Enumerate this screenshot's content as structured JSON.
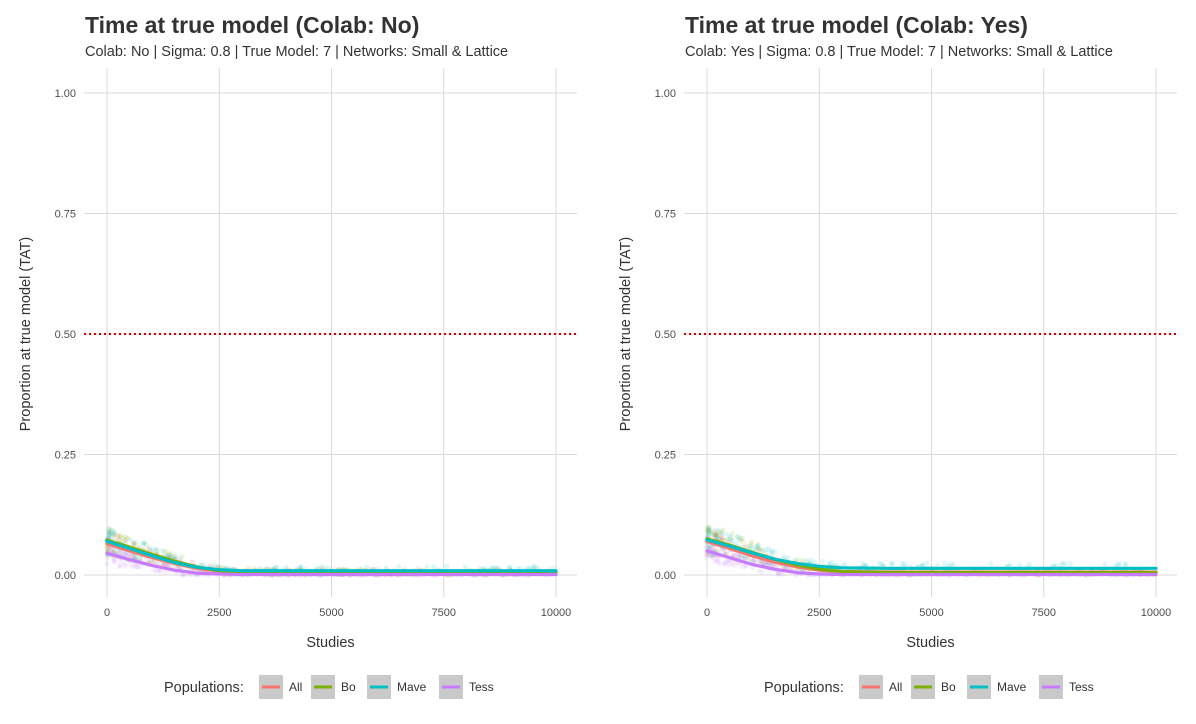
{
  "chart_data": [
    {
      "type": "scatter",
      "title": "Time at true model (Colab: No)",
      "subtitle": "Colab: No | Sigma: 0.8 | True Model: 7 | Networks: Small & Lattice",
      "xlabel": "Studies",
      "ylabel": "Proportion at true model (TAT)",
      "xlim": [
        0,
        10000
      ],
      "ylim": [
        0,
        1
      ],
      "x_ticks": [
        0,
        2500,
        5000,
        7500,
        10000
      ],
      "x_tick_labels": [
        "0",
        "2500",
        "5000",
        "7500",
        "10000"
      ],
      "y_ticks": [
        0,
        0.25,
        0.5,
        0.75,
        1.0
      ],
      "y_tick_labels": [
        "0.00",
        "0.25",
        "0.50",
        "0.75",
        "1.00"
      ],
      "grid": true,
      "reference_line": {
        "y": 0.5,
        "style": "dotted",
        "color": "#cc0000"
      },
      "legend_title": "Populations:",
      "legend_position": "bottom",
      "series": [
        {
          "name": "All",
          "color": "#f8766d",
          "x": [
            0,
            500,
            1000,
            1500,
            2000,
            2500,
            3000,
            4000,
            5000,
            6000,
            7000,
            8000,
            9000,
            10000
          ],
          "values": [
            0.065,
            0.05,
            0.036,
            0.024,
            0.014,
            0.008,
            0.006,
            0.005,
            0.005,
            0.005,
            0.005,
            0.005,
            0.005,
            0.005
          ]
        },
        {
          "name": "Bo",
          "color": "#7cae00",
          "x": [
            0,
            500,
            1000,
            1500,
            2000,
            2500,
            3000,
            4000,
            5000,
            6000,
            7000,
            8000,
            9000,
            10000
          ],
          "values": [
            0.072,
            0.058,
            0.043,
            0.029,
            0.017,
            0.009,
            0.006,
            0.005,
            0.005,
            0.005,
            0.005,
            0.005,
            0.005,
            0.005
          ]
        },
        {
          "name": "Mave",
          "color": "#00bfc4",
          "x": [
            0,
            500,
            1000,
            1500,
            2000,
            2500,
            3000,
            4000,
            5000,
            6000,
            7000,
            8000,
            9000,
            10000
          ],
          "values": [
            0.07,
            0.055,
            0.04,
            0.026,
            0.016,
            0.011,
            0.009,
            0.009,
            0.009,
            0.009,
            0.009,
            0.009,
            0.009,
            0.009
          ]
        },
        {
          "name": "Tess",
          "color": "#c77cff",
          "x": [
            0,
            500,
            1000,
            1500,
            2000,
            2500,
            3000,
            4000,
            5000,
            6000,
            7000,
            8000,
            9000,
            10000
          ],
          "values": [
            0.045,
            0.032,
            0.02,
            0.01,
            0.004,
            0.002,
            0.001,
            0.001,
            0.001,
            0.001,
            0.001,
            0.001,
            0.001,
            0.001
          ]
        }
      ]
    },
    {
      "type": "scatter",
      "title": "Time at true model (Colab: Yes)",
      "subtitle": "Colab: Yes | Sigma: 0.8 | True Model: 7 | Networks: Small & Lattice",
      "xlabel": "Studies",
      "ylabel": "Proportion at true model (TAT)",
      "xlim": [
        0,
        10000
      ],
      "ylim": [
        0,
        1
      ],
      "x_ticks": [
        0,
        2500,
        5000,
        7500,
        10000
      ],
      "x_tick_labels": [
        "0",
        "2500",
        "5000",
        "7500",
        "10000"
      ],
      "y_ticks": [
        0,
        0.25,
        0.5,
        0.75,
        1.0
      ],
      "y_tick_labels": [
        "0.00",
        "0.25",
        "0.50",
        "0.75",
        "1.00"
      ],
      "grid": true,
      "reference_line": {
        "y": 0.5,
        "style": "dotted",
        "color": "#cc0000"
      },
      "legend_title": "Populations:",
      "legend_position": "bottom",
      "series": [
        {
          "name": "All",
          "color": "#f8766d",
          "x": [
            0,
            500,
            1000,
            1500,
            2000,
            2500,
            3000,
            4000,
            5000,
            6000,
            7000,
            8000,
            9000,
            10000
          ],
          "values": [
            0.07,
            0.055,
            0.04,
            0.027,
            0.017,
            0.01,
            0.007,
            0.006,
            0.006,
            0.006,
            0.006,
            0.006,
            0.006,
            0.006
          ]
        },
        {
          "name": "Bo",
          "color": "#7cae00",
          "x": [
            0,
            500,
            1000,
            1500,
            2000,
            2500,
            3000,
            4000,
            5000,
            6000,
            7000,
            8000,
            9000,
            10000
          ],
          "values": [
            0.075,
            0.062,
            0.047,
            0.033,
            0.021,
            0.012,
            0.007,
            0.005,
            0.005,
            0.005,
            0.005,
            0.005,
            0.005,
            0.005
          ]
        },
        {
          "name": "Mave",
          "color": "#00bfc4",
          "x": [
            0,
            500,
            1000,
            1500,
            2000,
            2500,
            3000,
            4000,
            5000,
            6000,
            7000,
            8000,
            9000,
            10000
          ],
          "values": [
            0.073,
            0.06,
            0.046,
            0.033,
            0.024,
            0.018,
            0.015,
            0.014,
            0.014,
            0.014,
            0.014,
            0.014,
            0.014,
            0.014
          ]
        },
        {
          "name": "Tess",
          "color": "#c77cff",
          "x": [
            0,
            500,
            1000,
            1500,
            2000,
            2500,
            3000,
            4000,
            5000,
            6000,
            7000,
            8000,
            9000,
            10000
          ],
          "values": [
            0.05,
            0.036,
            0.022,
            0.012,
            0.005,
            0.002,
            0.001,
            0.001,
            0.001,
            0.001,
            0.001,
            0.001,
            0.001,
            0.001
          ]
        }
      ]
    }
  ]
}
